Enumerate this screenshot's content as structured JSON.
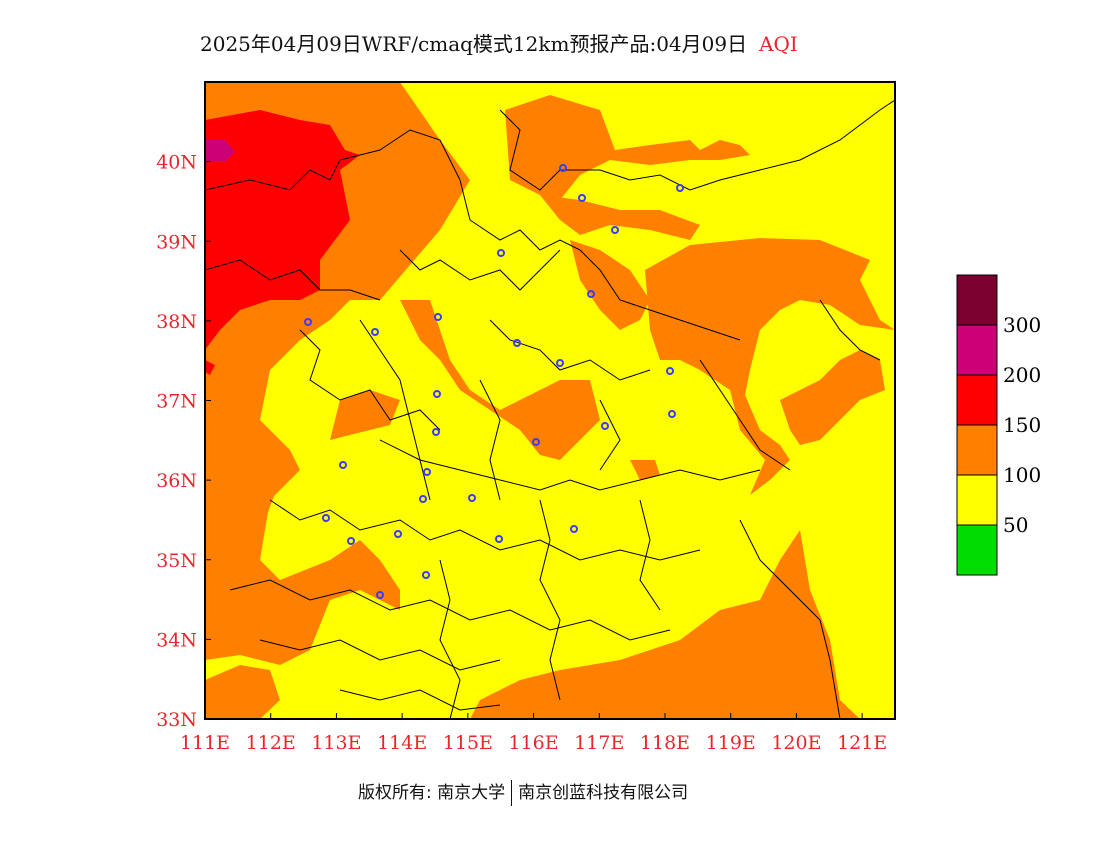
{
  "title": {
    "main": "2025年04月09日WRF/cmaq模式12km预报产品:04月09日",
    "variable": "AQI"
  },
  "map": {
    "lon_range": [
      111,
      121.5
    ],
    "lat_range": [
      33,
      41
    ],
    "lon_ticks": [
      "111E",
      "112E",
      "113E",
      "114E",
      "115E",
      "116E",
      "117E",
      "118E",
      "119E",
      "120E",
      "121E"
    ],
    "lat_ticks": [
      "33N",
      "34N",
      "35N",
      "36N",
      "37N",
      "38N",
      "39N",
      "40N"
    ],
    "city_marker_color": "#3b3bff"
  },
  "legend": {
    "colors": [
      "#7a0030",
      "#cc0077",
      "#ff0000",
      "#ff8000",
      "#ffff00",
      "#00dd00"
    ],
    "labels": [
      "300",
      "200",
      "150",
      "100",
      "50"
    ]
  },
  "footer": {
    "left": "版权所有: 南京大学",
    "right": "南京创蓝科技有限公司"
  }
}
